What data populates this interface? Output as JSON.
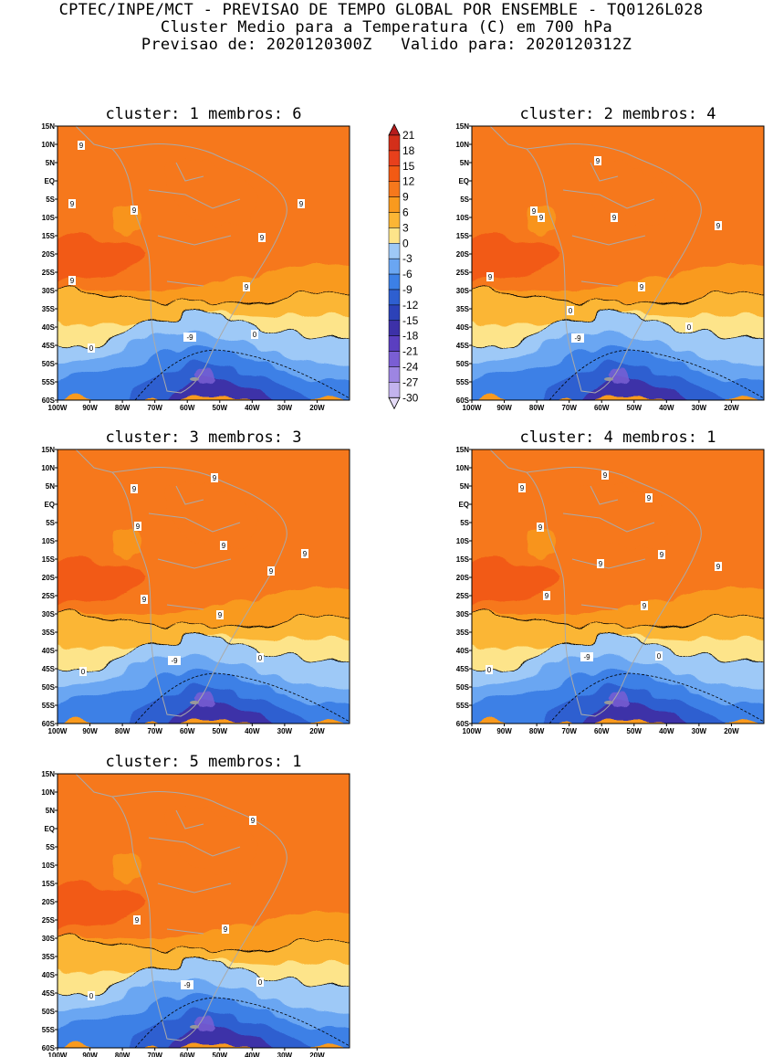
{
  "header": {
    "line1": "CPTEC/INPE/MCT - PREVISAO DE TEMPO GLOBAL POR ENSEMBLE - TQ0126L028",
    "line2": "Cluster Medio para a Temperatura (C) em 700 hPa",
    "line3": "Previsao de: 2020120300Z   Valido para: 2020120312Z"
  },
  "lat_ticks": [
    "15N",
    "10N",
    "5N",
    "EQ",
    "5S",
    "10S",
    "15S",
    "20S",
    "25S",
    "30S",
    "35S",
    "40S",
    "45S",
    "50S",
    "55S",
    "60S"
  ],
  "lon_ticks": [
    "100W",
    "90W",
    "80W",
    "70W",
    "60W",
    "50W",
    "40W",
    "30W",
    "20W"
  ],
  "colorbar": {
    "labels": [
      "21",
      "18",
      "15",
      "12",
      "9",
      "6",
      "3",
      "0",
      "-3",
      "-6",
      "-9",
      "-12",
      "-15",
      "-18",
      "-21",
      "-24",
      "-27",
      "-30"
    ],
    "colors": [
      "#b71c1c",
      "#d32f1a",
      "#e8401c",
      "#f25a14",
      "#f6781c",
      "#f99a1e",
      "#fbb635",
      "#fde48a",
      "#9ec9f7",
      "#6aa6f2",
      "#3c80e6",
      "#2e5fd0",
      "#2c42b8",
      "#3d31a8",
      "#5b3fc0",
      "#7a5ed4",
      "#9d85e2",
      "#c3b3ee",
      "#e5dcf7"
    ]
  },
  "panels": [
    {
      "title": "cluster: 1   membros: 6",
      "labels": [
        {
          "t": "9",
          "x": 26,
          "y": 21
        },
        {
          "t": "9",
          "x": 16,
          "y": 85
        },
        {
          "t": "9",
          "x": 84,
          "y": 92
        },
        {
          "t": "9",
          "x": 267,
          "y": 85
        },
        {
          "t": "9",
          "x": 224,
          "y": 122
        },
        {
          "t": "9",
          "x": 16,
          "y": 169
        },
        {
          "t": "9",
          "x": 207,
          "y": 176
        },
        {
          "t": "0",
          "x": 216,
          "y": 228
        },
        {
          "t": "0",
          "x": 37,
          "y": 243
        },
        {
          "t": "-9",
          "x": 145,
          "y": 231
        }
      ]
    },
    {
      "title": "cluster: 2   membros: 4",
      "labels": [
        {
          "t": "9",
          "x": 138,
          "y": 38
        },
        {
          "t": "9",
          "x": 68,
          "y": 93
        },
        {
          "t": "9",
          "x": 76,
          "y": 100
        },
        {
          "t": "9",
          "x": 156,
          "y": 100
        },
        {
          "t": "9",
          "x": 270,
          "y": 109
        },
        {
          "t": "9",
          "x": 20,
          "y": 165
        },
        {
          "t": "9",
          "x": 186,
          "y": 176
        },
        {
          "t": "0",
          "x": 108,
          "y": 202
        },
        {
          "t": "0",
          "x": 238,
          "y": 220
        },
        {
          "t": "-9",
          "x": 116,
          "y": 232
        }
      ]
    },
    {
      "title": "cluster: 3   membros: 3",
      "labels": [
        {
          "t": "9",
          "x": 172,
          "y": 31
        },
        {
          "t": "9",
          "x": 84,
          "y": 43
        },
        {
          "t": "9",
          "x": 88,
          "y": 84
        },
        {
          "t": "9",
          "x": 182,
          "y": 105
        },
        {
          "t": "9",
          "x": 271,
          "y": 114
        },
        {
          "t": "9",
          "x": 234,
          "y": 133
        },
        {
          "t": "9",
          "x": 95,
          "y": 164
        },
        {
          "t": "9",
          "x": 178,
          "y": 181
        },
        {
          "t": "0",
          "x": 222,
          "y": 228
        },
        {
          "t": "0",
          "x": 28,
          "y": 243
        },
        {
          "t": "-9",
          "x": 128,
          "y": 231
        }
      ]
    },
    {
      "title": "cluster: 4   membros: 1",
      "labels": [
        {
          "t": "9",
          "x": 146,
          "y": 28
        },
        {
          "t": "9",
          "x": 55,
          "y": 42
        },
        {
          "t": "9",
          "x": 194,
          "y": 53
        },
        {
          "t": "9",
          "x": 75,
          "y": 85
        },
        {
          "t": "9",
          "x": 208,
          "y": 115
        },
        {
          "t": "9",
          "x": 141,
          "y": 125
        },
        {
          "t": "9",
          "x": 270,
          "y": 128
        },
        {
          "t": "9",
          "x": 82,
          "y": 160
        },
        {
          "t": "9",
          "x": 189,
          "y": 171
        },
        {
          "t": "0",
          "x": 205,
          "y": 226
        },
        {
          "t": "0",
          "x": 19,
          "y": 241
        },
        {
          "t": "-9",
          "x": 126,
          "y": 227
        }
      ]
    },
    {
      "title": "cluster: 5   membros: 1",
      "labels": [
        {
          "t": "9",
          "x": 214,
          "y": 51
        },
        {
          "t": "9",
          "x": 87,
          "y": 160
        },
        {
          "t": "9",
          "x": 184,
          "y": 170
        },
        {
          "t": "0",
          "x": 222,
          "y": 228
        },
        {
          "t": "0",
          "x": 37,
          "y": 243
        },
        {
          "t": "-9",
          "x": 142,
          "y": 231
        }
      ]
    }
  ]
}
